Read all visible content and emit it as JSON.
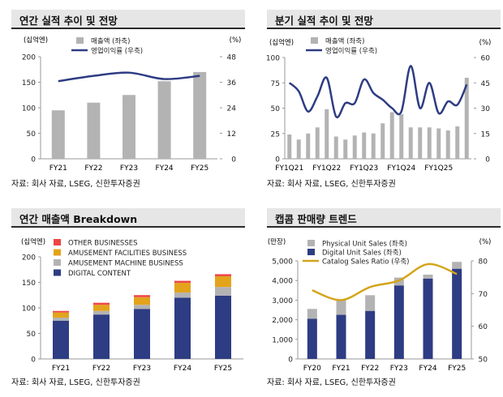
{
  "colors": {
    "grey_bar": "#b3b3b3",
    "navy_line": "#2e3c83",
    "orange": "#e3a31a",
    "red": "#ee4545",
    "gold_line": "#d4a51a",
    "title_bg": "#e6e6e6"
  },
  "chart_data": [
    {
      "id": "annual",
      "type": "bar+line",
      "title": "연간 실적 추이 및 전망",
      "y_left_unit": "(십억엔)",
      "y_right_unit": "(%)",
      "categories": [
        "FY21",
        "FY22",
        "FY23",
        "FY24",
        "FY25"
      ],
      "ylim_left": [
        0,
        200
      ],
      "yticks_left": [
        "0",
        "50",
        "100",
        "150",
        "200"
      ],
      "ylim_right": [
        0,
        48
      ],
      "yticks_right": [
        "0",
        "12",
        "24",
        "36",
        "48"
      ],
      "series": [
        {
          "name": "매출액 (좌축)",
          "kind": "bar",
          "axis": "left",
          "values": [
            95,
            110,
            125,
            152,
            170
          ]
        },
        {
          "name": "영업이익률 (우축)",
          "kind": "line",
          "axis": "right",
          "values": [
            36.5,
            39,
            40.5,
            37.5,
            39
          ]
        }
      ],
      "source": "자료: 회사 자료, LSEG, 신한투자증권"
    },
    {
      "id": "quarterly",
      "type": "bar+line",
      "title": "분기 실적 추이 및 전망",
      "y_left_unit": "(십억엔)",
      "y_right_unit": "(%)",
      "x_tick_labels": [
        "FY1Q21",
        "FY1Q22",
        "FY1Q23",
        "FY1Q24",
        "FY1Q25"
      ],
      "ylim_left": [
        0,
        100
      ],
      "yticks_left": [
        "0",
        "25",
        "50",
        "75",
        "100"
      ],
      "ylim_right": [
        0,
        60
      ],
      "yticks_right": [
        "0",
        "15",
        "30",
        "45",
        "60"
      ],
      "series": [
        {
          "name": "매출액 (좌축)",
          "kind": "bar",
          "axis": "left",
          "values": [
            24,
            19,
            25,
            31,
            49,
            22,
            19,
            23,
            26,
            25,
            35,
            46,
            44,
            31,
            31,
            31,
            30,
            28,
            32,
            80
          ]
        },
        {
          "name": "영업이익률 (우축)",
          "kind": "line",
          "axis": "right",
          "values": [
            45,
            40,
            28,
            37,
            48,
            25,
            33,
            33,
            47,
            39,
            35,
            30,
            28,
            55,
            30,
            45,
            27,
            34,
            32,
            44
          ]
        }
      ],
      "source": "자료: 회사 자료, LSEG, 신한투자증권"
    },
    {
      "id": "breakdown",
      "type": "stacked-bar",
      "title": "연간 매출액 Breakdown",
      "y_left_unit": "(십억엔)",
      "categories": [
        "FY21",
        "FY22",
        "FY23",
        "FY24",
        "FY25"
      ],
      "ylim": [
        0,
        200
      ],
      "yticks": [
        "0",
        "50",
        "100",
        "150",
        "200"
      ],
      "series": [
        {
          "name": "DIGITAL CONTENT",
          "values": [
            75,
            87,
            98,
            120,
            124
          ]
        },
        {
          "name": "AMUSEMENT MACHINE BUSINESS",
          "values": [
            6,
            7,
            8,
            10,
            17
          ]
        },
        {
          "name": "AMUSEMENT FACILITIES BUSINESS",
          "values": [
            10,
            12,
            15,
            19,
            21
          ]
        },
        {
          "name": "OTHER BUSINESSES",
          "values": [
            3,
            4,
            4,
            4,
            4
          ]
        }
      ],
      "source": "자료: 회사 자료, LSEG, 신한투자증권"
    },
    {
      "id": "units",
      "type": "stacked-bar+line",
      "title": "캡콤 판매량 트렌드",
      "y_left_unit": "(만장)",
      "y_right_unit": "(%)",
      "categories": [
        "FY20",
        "FY21",
        "FY22",
        "FY23",
        "FY24",
        "FY25"
      ],
      "ylim_left": [
        0,
        5000
      ],
      "yticks_left": [
        "0",
        "1,000",
        "2,000",
        "3,000",
        "4,000",
        "5,000"
      ],
      "ylim_right": [
        50,
        80
      ],
      "yticks_right": [
        "50",
        "60",
        "70",
        "80"
      ],
      "series": [
        {
          "name": "Physical Unit Sales (좌축)",
          "kind": "bar",
          "axis": "left",
          "values": [
            500,
            750,
            800,
            400,
            200,
            350
          ]
        },
        {
          "name": "Digital Unit Sales (좌축)",
          "kind": "bar",
          "axis": "left",
          "values": [
            2050,
            2250,
            2450,
            3750,
            4100,
            4600
          ]
        },
        {
          "name": "Catalog Sales Ratio (우축)",
          "kind": "line",
          "axis": "right",
          "values": [
            71,
            68,
            72,
            74,
            79,
            76
          ]
        }
      ],
      "source": "자료: 회사 자료, LSEG, 신한투자증권"
    }
  ]
}
